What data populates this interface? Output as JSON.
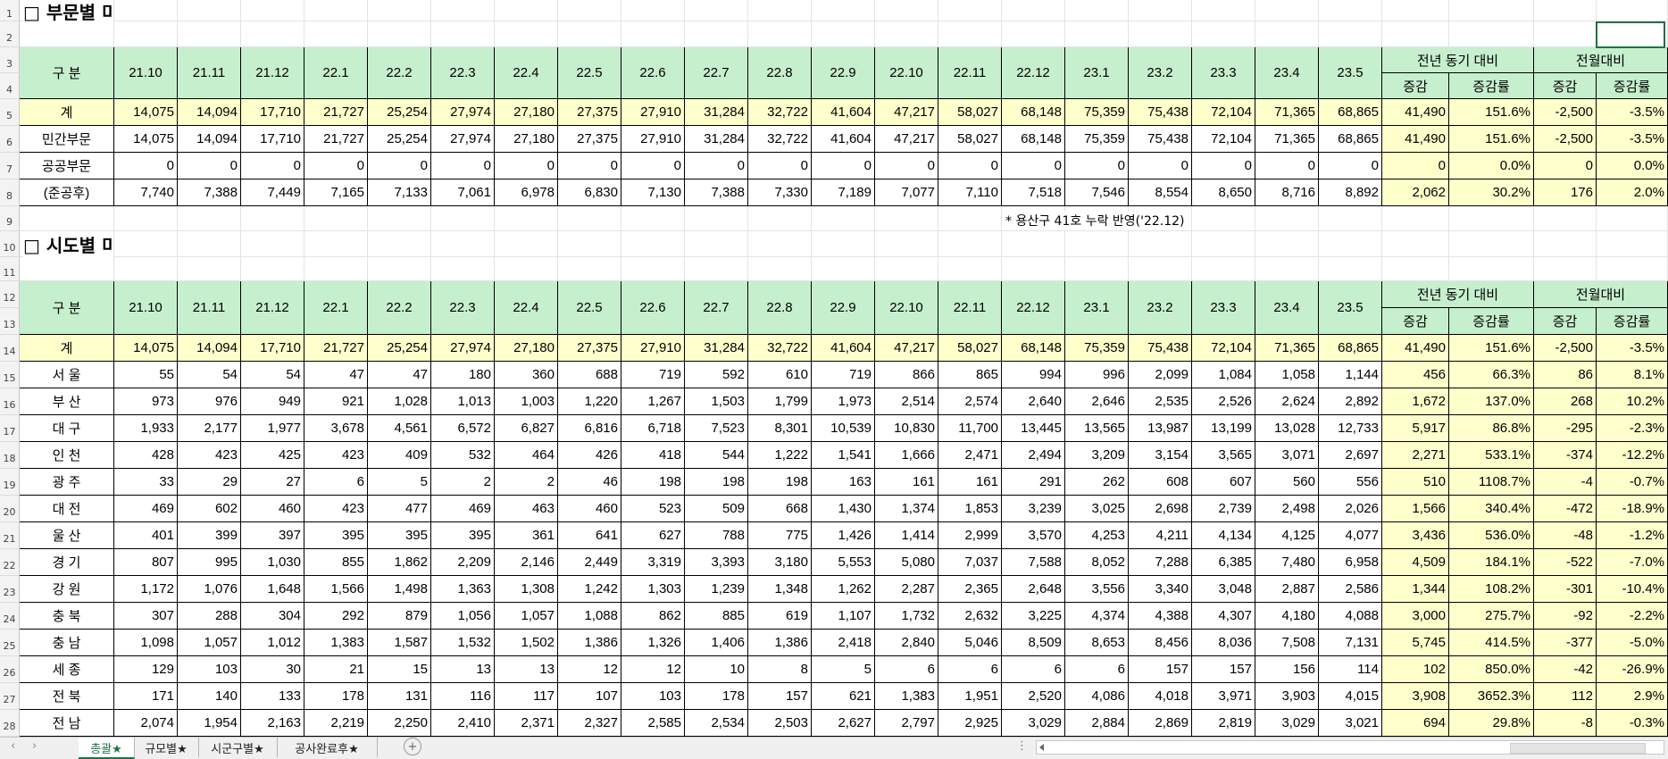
{
  "sheet": {
    "section1_title": "□ 부문별 미",
    "section2_title": "□ 시도별 미",
    "note": "* 용산구 41호 누락 반영('22.12)",
    "header": {
      "gubun": "구  분",
      "months": [
        "21.10",
        "21.11",
        "21.12",
        "22.1",
        "22.2",
        "22.3",
        "22.4",
        "22.5",
        "22.6",
        "22.7",
        "22.8",
        "22.9",
        "22.10",
        "22.11",
        "22.12",
        "23.1",
        "23.2",
        "23.3",
        "23.4",
        "23.5"
      ],
      "group_yoy": "전년 동기 대비",
      "group_mom": "전월대비",
      "sub_change": "증감",
      "sub_rate": "증감률"
    },
    "table1": [
      {
        "label": "계",
        "values": [
          "14,075",
          "14,094",
          "17,710",
          "21,727",
          "25,254",
          "27,974",
          "27,180",
          "27,375",
          "27,910",
          "31,284",
          "32,722",
          "41,604",
          "47,217",
          "58,027",
          "68,148",
          "75,359",
          "75,438",
          "72,104",
          "71,365",
          "68,865"
        ],
        "yoy_change": "41,490",
        "yoy_rate": "151.6%",
        "mom_change": "-2,500",
        "mom_rate": "-3.5%"
      },
      {
        "label": "민간부문",
        "values": [
          "14,075",
          "14,094",
          "17,710",
          "21,727",
          "25,254",
          "27,974",
          "27,180",
          "27,375",
          "27,910",
          "31,284",
          "32,722",
          "41,604",
          "47,217",
          "58,027",
          "68,148",
          "75,359",
          "75,438",
          "72,104",
          "71,365",
          "68,865"
        ],
        "yoy_change": "41,490",
        "yoy_rate": "151.6%",
        "mom_change": "-2,500",
        "mom_rate": "-3.5%"
      },
      {
        "label": "공공부문",
        "values": [
          "0",
          "0",
          "0",
          "0",
          "0",
          "0",
          "0",
          "0",
          "0",
          "0",
          "0",
          "0",
          "0",
          "0",
          "0",
          "0",
          "0",
          "0",
          "0",
          "0"
        ],
        "yoy_change": "0",
        "yoy_rate": "0.0%",
        "mom_change": "0",
        "mom_rate": "0.0%"
      },
      {
        "label": "(준공후)",
        "values": [
          "7,740",
          "7,388",
          "7,449",
          "7,165",
          "7,133",
          "7,061",
          "6,978",
          "6,830",
          "7,130",
          "7,388",
          "7,330",
          "7,189",
          "7,077",
          "7,110",
          "7,518",
          "7,546",
          "8,554",
          "8,650",
          "8,716",
          "8,892"
        ],
        "yoy_change": "2,062",
        "yoy_rate": "30.2%",
        "mom_change": "176",
        "mom_rate": "2.0%"
      }
    ],
    "table2": [
      {
        "label": "계",
        "values": [
          "14,075",
          "14,094",
          "17,710",
          "21,727",
          "25,254",
          "27,974",
          "27,180",
          "27,375",
          "27,910",
          "31,284",
          "32,722",
          "41,604",
          "47,217",
          "58,027",
          "68,148",
          "75,359",
          "75,438",
          "72,104",
          "71,365",
          "68,865"
        ],
        "yoy_change": "41,490",
        "yoy_rate": "151.6%",
        "mom_change": "-2,500",
        "mom_rate": "-3.5%"
      },
      {
        "label": "서  울",
        "values": [
          "55",
          "54",
          "54",
          "47",
          "47",
          "180",
          "360",
          "688",
          "719",
          "592",
          "610",
          "719",
          "866",
          "865",
          "994",
          "996",
          "2,099",
          "1,084",
          "1,058",
          "1,144"
        ],
        "yoy_change": "456",
        "yoy_rate": "66.3%",
        "mom_change": "86",
        "mom_rate": "8.1%"
      },
      {
        "label": "부  산",
        "values": [
          "973",
          "976",
          "949",
          "921",
          "1,028",
          "1,013",
          "1,003",
          "1,220",
          "1,267",
          "1,503",
          "1,799",
          "1,973",
          "2,514",
          "2,574",
          "2,640",
          "2,646",
          "2,535",
          "2,526",
          "2,624",
          "2,892"
        ],
        "yoy_change": "1,672",
        "yoy_rate": "137.0%",
        "mom_change": "268",
        "mom_rate": "10.2%"
      },
      {
        "label": "대  구",
        "values": [
          "1,933",
          "2,177",
          "1,977",
          "3,678",
          "4,561",
          "6,572",
          "6,827",
          "6,816",
          "6,718",
          "7,523",
          "8,301",
          "10,539",
          "10,830",
          "11,700",
          "13,445",
          "13,565",
          "13,987",
          "13,199",
          "13,028",
          "12,733"
        ],
        "yoy_change": "5,917",
        "yoy_rate": "86.8%",
        "mom_change": "-295",
        "mom_rate": "-2.3%"
      },
      {
        "label": "인  천",
        "values": [
          "428",
          "423",
          "425",
          "423",
          "409",
          "532",
          "464",
          "426",
          "418",
          "544",
          "1,222",
          "1,541",
          "1,666",
          "2,471",
          "2,494",
          "3,209",
          "3,154",
          "3,565",
          "3,071",
          "2,697"
        ],
        "yoy_change": "2,271",
        "yoy_rate": "533.1%",
        "mom_change": "-374",
        "mom_rate": "-12.2%"
      },
      {
        "label": "광  주",
        "values": [
          "33",
          "29",
          "27",
          "6",
          "5",
          "2",
          "2",
          "46",
          "198",
          "198",
          "198",
          "163",
          "161",
          "161",
          "291",
          "262",
          "608",
          "607",
          "560",
          "556"
        ],
        "yoy_change": "510",
        "yoy_rate": "1108.7%",
        "mom_change": "-4",
        "mom_rate": "-0.7%"
      },
      {
        "label": "대  전",
        "values": [
          "469",
          "602",
          "460",
          "423",
          "477",
          "469",
          "463",
          "460",
          "523",
          "509",
          "668",
          "1,430",
          "1,374",
          "1,853",
          "3,239",
          "3,025",
          "2,698",
          "2,739",
          "2,498",
          "2,026"
        ],
        "yoy_change": "1,566",
        "yoy_rate": "340.4%",
        "mom_change": "-472",
        "mom_rate": "-18.9%"
      },
      {
        "label": "울  산",
        "values": [
          "401",
          "399",
          "397",
          "395",
          "395",
          "395",
          "361",
          "641",
          "627",
          "788",
          "775",
          "1,426",
          "1,414",
          "2,999",
          "3,570",
          "4,253",
          "4,211",
          "4,134",
          "4,125",
          "4,077"
        ],
        "yoy_change": "3,436",
        "yoy_rate": "536.0%",
        "mom_change": "-48",
        "mom_rate": "-1.2%"
      },
      {
        "label": "경  기",
        "values": [
          "807",
          "995",
          "1,030",
          "855",
          "1,862",
          "2,209",
          "2,146",
          "2,449",
          "3,319",
          "3,393",
          "3,180",
          "5,553",
          "5,080",
          "7,037",
          "7,588",
          "8,052",
          "7,288",
          "6,385",
          "7,480",
          "6,958"
        ],
        "yoy_change": "4,509",
        "yoy_rate": "184.1%",
        "mom_change": "-522",
        "mom_rate": "-7.0%"
      },
      {
        "label": "강  원",
        "values": [
          "1,172",
          "1,076",
          "1,648",
          "1,566",
          "1,498",
          "1,363",
          "1,308",
          "1,242",
          "1,303",
          "1,239",
          "1,348",
          "1,262",
          "2,287",
          "2,365",
          "2,648",
          "3,556",
          "3,340",
          "3,048",
          "2,887",
          "2,586"
        ],
        "yoy_change": "1,344",
        "yoy_rate": "108.2%",
        "mom_change": "-301",
        "mom_rate": "-10.4%"
      },
      {
        "label": "충  북",
        "values": [
          "307",
          "288",
          "304",
          "292",
          "879",
          "1,056",
          "1,057",
          "1,088",
          "862",
          "885",
          "619",
          "1,107",
          "1,732",
          "2,632",
          "3,225",
          "4,374",
          "4,388",
          "4,307",
          "4,180",
          "4,088"
        ],
        "yoy_change": "3,000",
        "yoy_rate": "275.7%",
        "mom_change": "-92",
        "mom_rate": "-2.2%"
      },
      {
        "label": "충  남",
        "values": [
          "1,098",
          "1,057",
          "1,012",
          "1,383",
          "1,587",
          "1,532",
          "1,502",
          "1,386",
          "1,326",
          "1,406",
          "1,386",
          "2,418",
          "2,840",
          "5,046",
          "8,509",
          "8,653",
          "8,456",
          "8,036",
          "7,508",
          "7,131"
        ],
        "yoy_change": "5,745",
        "yoy_rate": "414.5%",
        "mom_change": "-377",
        "mom_rate": "-5.0%"
      },
      {
        "label": "세  종",
        "values": [
          "129",
          "103",
          "30",
          "21",
          "15",
          "13",
          "13",
          "12",
          "12",
          "10",
          "8",
          "5",
          "6",
          "6",
          "6",
          "6",
          "157",
          "157",
          "156",
          "114"
        ],
        "yoy_change": "102",
        "yoy_rate": "850.0%",
        "mom_change": "-42",
        "mom_rate": "-26.9%"
      },
      {
        "label": "전  북",
        "values": [
          "171",
          "140",
          "133",
          "178",
          "131",
          "116",
          "117",
          "107",
          "103",
          "178",
          "157",
          "621",
          "1,383",
          "1,951",
          "2,520",
          "4,086",
          "4,018",
          "3,971",
          "3,903",
          "4,015"
        ],
        "yoy_change": "3,908",
        "yoy_rate": "3652.3%",
        "mom_change": "112",
        "mom_rate": "2.9%"
      },
      {
        "label": "전  남",
        "values": [
          "2,074",
          "1,954",
          "2,163",
          "2,219",
          "2,250",
          "2,410",
          "2,371",
          "2,327",
          "2,585",
          "2,534",
          "2,503",
          "2,627",
          "2,797",
          "2,925",
          "3,029",
          "2,884",
          "2,869",
          "2,819",
          "3,029",
          "3,021"
        ],
        "yoy_change": "694",
        "yoy_rate": "29.8%",
        "mom_change": "-8",
        "mom_rate": "-0.3%"
      }
    ],
    "row_numbers": [
      "1",
      "2",
      "3",
      "4",
      "5",
      "6",
      "7",
      "8",
      "9",
      "10",
      "11",
      "12",
      "13",
      "14",
      "15",
      "16",
      "17",
      "18",
      "19",
      "20",
      "21",
      "22",
      "23",
      "24",
      "25",
      "26",
      "27",
      "28"
    ]
  },
  "tabs": [
    {
      "label": "총괄★",
      "active": true
    },
    {
      "label": "규모별★",
      "active": false
    },
    {
      "label": "시군구별★",
      "active": false
    },
    {
      "label": "공사완료후★",
      "active": false
    }
  ],
  "tab_nav": {
    "prev": "‹",
    "next": "›",
    "add": "+",
    "more": "⋮"
  },
  "colors": {
    "header_green": "#c6efce",
    "highlight_yellow": "#ffffcc",
    "tab_active": "#1e7145"
  }
}
